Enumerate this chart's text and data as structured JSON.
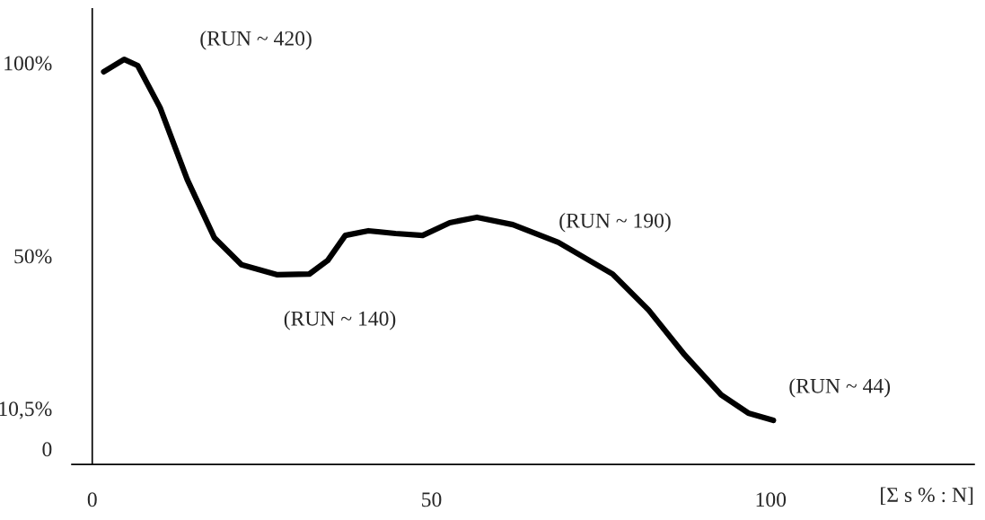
{
  "chart_data": {
    "type": "line",
    "xlabel": "[Σ s % : N]",
    "x": [
      1.7,
      4.7,
      6.7,
      10,
      14,
      18,
      22,
      27.3,
      32,
      34.7,
      37.3,
      40.7,
      44.7,
      48.7,
      52.7,
      56.7,
      62,
      68.7,
      76.7,
      82,
      87.3,
      92.7,
      96.7,
      100.4
    ],
    "series": [
      {
        "color": "#000000",
        "values": [
          97.7,
          100.9,
          99.3,
          88.4,
          69.8,
          54.7,
          47.7,
          45.1,
          45.3,
          48.8,
          55.3,
          56.5,
          55.8,
          55.3,
          58.6,
          60.0,
          58.1,
          53.5,
          45.3,
          36,
          24.4,
          14,
          9.3,
          7.4
        ]
      }
    ],
    "xlim": [
      -3,
      130
    ],
    "ylim": [
      -4,
      114
    ],
    "xticks": [
      0,
      50,
      100
    ],
    "yticks": [
      {
        "value": 0,
        "label": "0"
      },
      {
        "value": 10.5,
        "label": "10,5%"
      },
      {
        "value": 50,
        "label": "50%"
      },
      {
        "value": 100,
        "label": "100%"
      }
    ],
    "annotations": [
      "(RUN ~ 420)",
      "(RUN ~ 140)",
      "(RUN ~ 190)",
      "(RUN ~ 44)"
    ],
    "legend": false,
    "marker": "none",
    "line_style": "solid"
  }
}
